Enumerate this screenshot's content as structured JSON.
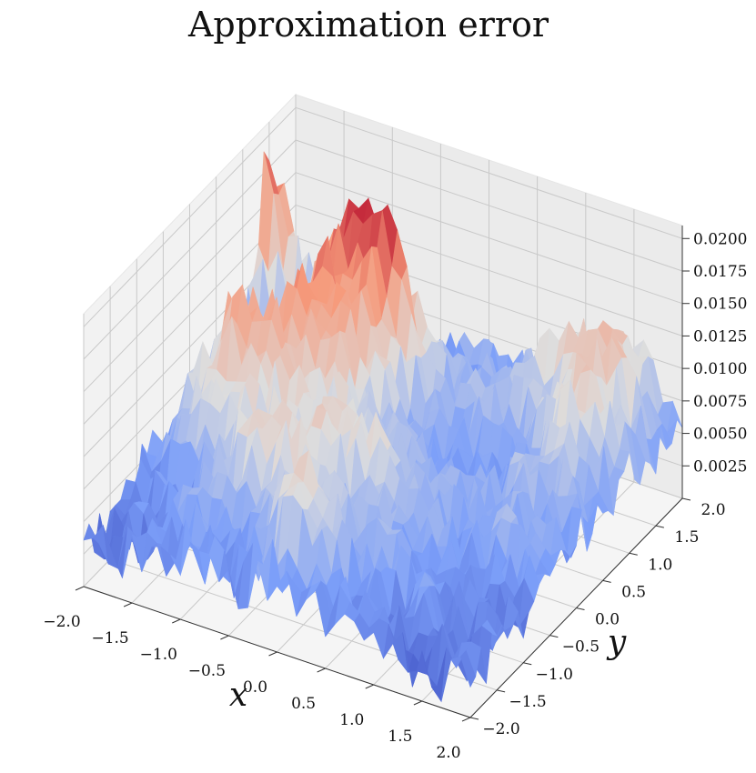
{
  "chart_data": {
    "type": "surface",
    "title": "Approximation error",
    "xlabel": "x",
    "ylabel": "y",
    "zlabel": "",
    "xlim": [
      -2.0,
      2.0
    ],
    "ylim": [
      -2.0,
      2.0
    ],
    "zlim": [
      0.0,
      0.021
    ],
    "x_ticks": [
      "−2.0",
      "−1.5",
      "−1.0",
      "−0.5",
      "0.0",
      "0.5",
      "1.0",
      "1.5",
      "2.0"
    ],
    "y_ticks": [
      "−2.0",
      "−1.5",
      "−1.0",
      "−0.5",
      "0.0",
      "0.5",
      "1.0",
      "1.5",
      "2.0"
    ],
    "z_ticks": [
      "0.0025",
      "0.0050",
      "0.0075",
      "0.0100",
      "0.0125",
      "0.0150",
      "0.0175",
      "0.0200"
    ],
    "x_grid": [
      -2.0,
      -1.5,
      -1.0,
      -0.5,
      0.0,
      0.5,
      1.0,
      1.5,
      2.0
    ],
    "y_grid": [
      2.0,
      1.5,
      1.0,
      0.5,
      0.0,
      -0.5,
      -1.0,
      -1.5,
      -2.0
    ],
    "z": [
      [
        0.004,
        0.006,
        0.005,
        0.0045,
        0.006,
        0.0055,
        0.008,
        0.01,
        0.005
      ],
      [
        0.02,
        0.006,
        0.004,
        0.005,
        0.006,
        0.007,
        0.011,
        0.0135,
        0.006
      ],
      [
        0.005,
        0.0045,
        0.018,
        0.02,
        0.008,
        0.007,
        0.007,
        0.012,
        0.007
      ],
      [
        0.005,
        0.006,
        0.017,
        0.014,
        0.006,
        0.005,
        0.005,
        0.009,
        0.006
      ],
      [
        0.006,
        0.016,
        0.014,
        0.012,
        0.008,
        0.006,
        0.006,
        0.007,
        0.005
      ],
      [
        0.005,
        0.012,
        0.011,
        0.009,
        0.012,
        0.008,
        0.006,
        0.006,
        0.005
      ],
      [
        0.004,
        0.005,
        0.009,
        0.013,
        0.008,
        0.007,
        0.005,
        0.004,
        0.004
      ],
      [
        0.003,
        0.004,
        0.006,
        0.005,
        0.012,
        0.006,
        0.005,
        0.004,
        0.003
      ],
      [
        0.003,
        0.003,
        0.005,
        0.004,
        0.005,
        0.004,
        0.003,
        0.003,
        0.002
      ]
    ],
    "colormap": "coolwarm",
    "colors": {
      "low": "#3b4cc0",
      "mid": "#dddddd",
      "high": "#b40426"
    }
  }
}
